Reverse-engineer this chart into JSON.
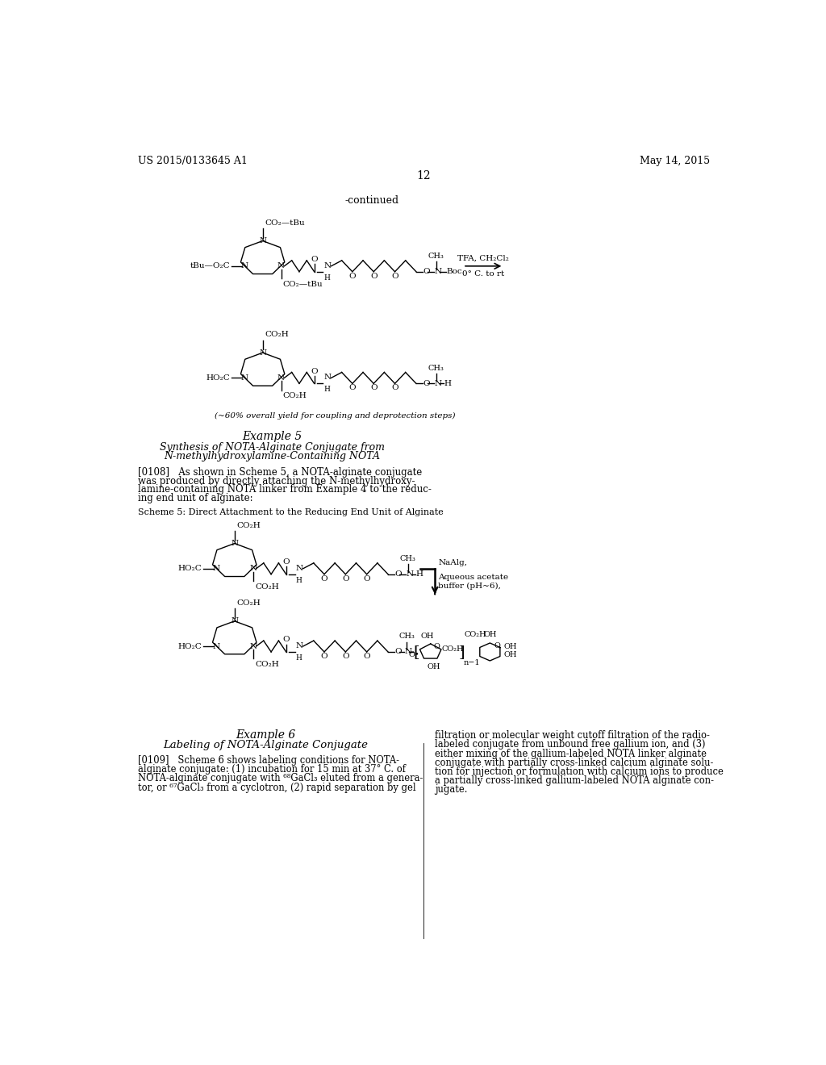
{
  "bg_color": "#ffffff",
  "header_left": "US 2015/0133645 A1",
  "header_right": "May 14, 2015",
  "page_number": "12",
  "continued_label": "-continued",
  "example5_title": "Example 5",
  "example5_subtitle1": "Synthesis of NOTA-Alginate Conjugate from",
  "example5_subtitle2": "N-methylhydroxylamine-Containing NOTA",
  "para0108_line1": "[0108]   As shown in Scheme 5, a NOTA-alginate conjugate",
  "para0108_line2": "was produced by directly attaching the N-methylhydroxy-",
  "para0108_line3": "lamine-containing NOTA linker from Example 4 to the reduc-",
  "para0108_line4": "ing end unit of alginate:",
  "scheme5_label": "Scheme 5: Direct Attachment to the Reducing End Unit of Alginate",
  "yield_note": "(~60% overall yield for coupling and deprotection steps)",
  "naAlg_label_1": "NaAlg,",
  "naAlg_label_2": "Aqueous acetate",
  "naAlg_label_3": "buffer (pH~6),",
  "example6_title": "Example 6",
  "example6_subtitle": "Labeling of NOTA-Alginate Conjugate",
  "para0109_left_1": "[0109]   Scheme 6 shows labeling conditions for NOTA-",
  "para0109_left_2": "alginate conjugate: (1) incubation for 15 min at 37° C. of",
  "para0109_left_3": "NOTA-alginate conjugate with ⁶⁸GaCl₃ eluted from a genera-",
  "para0109_left_4": "tor, or ⁶⁷GaCl₃ from a cyclotron, (2) rapid separation by gel",
  "para0109_right_1": "filtration or molecular weight cutoff filtration of the radio-",
  "para0109_right_2": "labeled conjugate from unbound free gallium ion, and (3)",
  "para0109_right_3": "either mixing of the gallium-labeled NOTA linker alginate",
  "para0109_right_4": "conjugate with partially cross-linked calcium alginate solu-",
  "para0109_right_5": "tion for injection or formulation with calcium ions to produce",
  "para0109_right_6": "a partially cross-linked gallium-labeled NOTA alginate con-",
  "para0109_right_7": "jugate."
}
